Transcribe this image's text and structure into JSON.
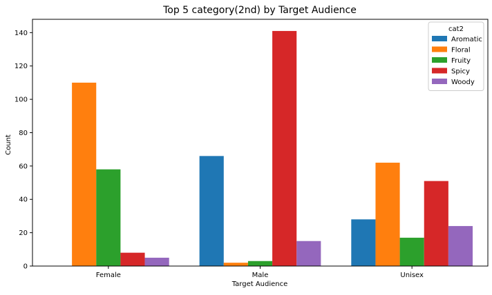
{
  "chart_data": {
    "type": "bar",
    "title": "Top 5 category(2nd) by Target Audience",
    "xlabel": "Target Audience",
    "ylabel": "Count",
    "categories": [
      "Female",
      "Male",
      "Unisex"
    ],
    "ylim": [
      0,
      148
    ],
    "yticks": [
      0,
      20,
      40,
      60,
      80,
      100,
      120,
      140
    ],
    "grid": false,
    "legend": {
      "title": "cat2",
      "position": "top-right"
    },
    "series": [
      {
        "name": "Aromatic",
        "color": "#1f77b4",
        "values": [
          0,
          66,
          28
        ]
      },
      {
        "name": "Floral",
        "color": "#ff7f0e",
        "values": [
          110,
          2,
          62
        ]
      },
      {
        "name": "Fruity",
        "color": "#2ca02c",
        "values": [
          58,
          3,
          17
        ]
      },
      {
        "name": "Spicy",
        "color": "#d62728",
        "values": [
          8,
          141,
          51
        ]
      },
      {
        "name": "Woody",
        "color": "#9467bd",
        "values": [
          5,
          15,
          24
        ]
      }
    ]
  }
}
